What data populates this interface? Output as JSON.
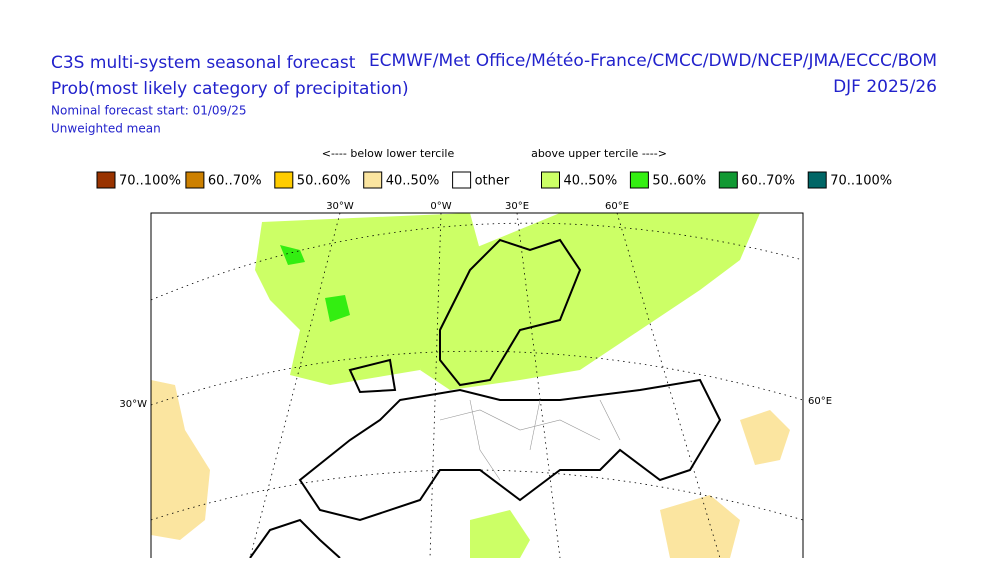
{
  "header": {
    "title": "C3S multi-system seasonal forecast",
    "subtitle": "Prob(most likely category of precipitation)",
    "start": "Nominal forecast start: 01/09/25",
    "mean": "Unweighted mean",
    "centres": "ECMWF/Met Office/Météo-France/CMCC/DWD/NCEP/JMA/ECCC/BOM",
    "season": "DJF 2025/26"
  },
  "legend": {
    "below": "<---- below lower tercile",
    "above": "above upper tercile ---->",
    "items": [
      {
        "label": "70..100%",
        "color": "#993300"
      },
      {
        "label": "60..70%",
        "color": "#cc8000"
      },
      {
        "label": "50..60%",
        "color": "#ffcc00"
      },
      {
        "label": "40..50%",
        "color": "#fbe5a0"
      },
      {
        "label": "other",
        "color": "#ffffff"
      },
      {
        "label": "40..50%",
        "color": "#ccff66"
      },
      {
        "label": "50..60%",
        "color": "#33ee11"
      },
      {
        "label": "60..70%",
        "color": "#119933"
      },
      {
        "label": "70..100%",
        "color": "#006666"
      }
    ]
  },
  "map": {
    "top_labels": [
      "30°W",
      "0°W",
      "30°E",
      "60°E"
    ],
    "left_label": "30°W",
    "right_label": "60°E"
  }
}
